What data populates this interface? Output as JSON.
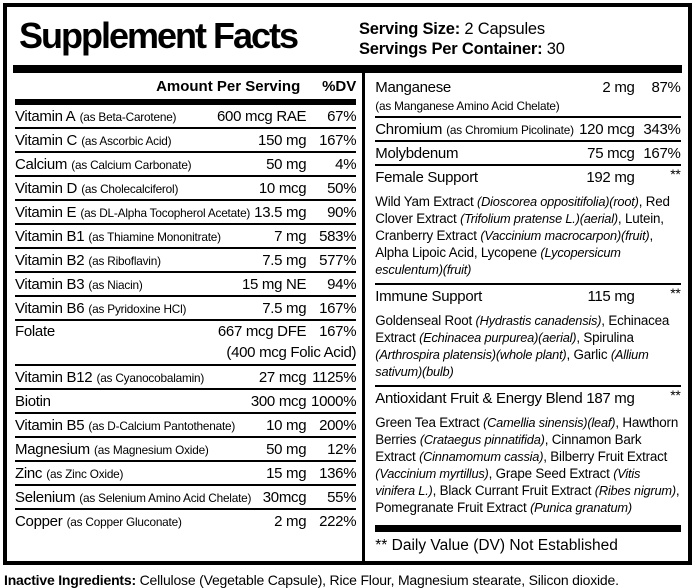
{
  "header": {
    "title": "Supplement Facts",
    "serving_size_label": "Serving Size:",
    "serving_size_value": " 2 Capsules",
    "servings_label": "Servings Per Container:",
    "servings_value": " 30"
  },
  "left": {
    "amount_header": "Amount Per Serving",
    "dv_header": "%DV",
    "rows": [
      {
        "name": "Vitamin A",
        "form": "(as Beta-Carotene)",
        "amount": "600 mcg RAE",
        "dv": "67%"
      },
      {
        "name": "Vitamin C",
        "form": "(as Ascorbic Acid)",
        "amount": "150 mg",
        "dv": "167%"
      },
      {
        "name": "Calcium",
        "form": "(as Calcium Carbonate)",
        "amount": "50 mg",
        "dv": "4%"
      },
      {
        "name": "Vitamin D",
        "form": "(as Cholecalciferol)",
        "amount": "10 mcg",
        "dv": "50%"
      },
      {
        "name": "Vitamin E",
        "form": "(as DL-Alpha Tocopherol Acetate)",
        "amount": "13.5 mg",
        "dv": "90%"
      },
      {
        "name": "Vitamin B1",
        "form": "(as Thiamine Mononitrate)",
        "amount": "7 mg",
        "dv": "583%"
      },
      {
        "name": "Vitamin B2",
        "form": "(as Riboflavin)",
        "amount": "7.5 mg",
        "dv": "577%"
      },
      {
        "name": "Vitamin B3",
        "form": "(as Niacin)",
        "amount": "15 mg NE",
        "dv": "94%"
      },
      {
        "name": "Vitamin B6",
        "form": "(as Pyridoxine HCl)",
        "amount": "7.5 mg",
        "dv": "167%"
      },
      {
        "name": "Folate",
        "form": "",
        "amount": "667 mcg DFE",
        "amount_line2": "(400 mcg Folic Acid)",
        "dv": "167%"
      },
      {
        "name": "Vitamin B12",
        "form": "(as Cyanocobalamin)",
        "amount": "27 mcg",
        "dv": "1125%"
      },
      {
        "name": "Biotin",
        "form": "",
        "amount": "300 mcg",
        "dv": "1000%"
      },
      {
        "name": "Vitamin B5",
        "form": "(as D-Calcium Pantothenate)",
        "amount": "10 mg",
        "dv": "200%"
      },
      {
        "name": "Magnesium",
        "form": "(as Magnesium Oxide)",
        "amount": "50 mg",
        "dv": "12%"
      },
      {
        "name": "Zinc",
        "form": "(as Zinc Oxide)",
        "amount": "15 mg",
        "dv": "136%"
      },
      {
        "name": "Selenium",
        "form": "(as Selenium Amino Acid Chelate)",
        "amount": "30mcg",
        "dv": "55%"
      },
      {
        "name": "Copper",
        "form": "(as Copper Gluconate)",
        "amount": "2 mg",
        "dv": "222%"
      }
    ]
  },
  "right": {
    "manganese": {
      "name": "Manganese",
      "form": "(as Manganese Amino Acid Chelate)",
      "amount": "2 mg",
      "dv": "87%"
    },
    "chromium": {
      "name": "Chromium",
      "form": "(as Chromium Picolinate)",
      "amount": "120 mcg",
      "dv": "343%"
    },
    "molybdenum": {
      "name": "Molybdenum",
      "form": "",
      "amount": "75 mcg",
      "dv": "167%"
    },
    "female_support": {
      "name": "Female Support",
      "amount": "192 mg",
      "dv": "**"
    },
    "female_blend": [
      {
        "t": "Wild Yam Extract ",
        "i": false
      },
      {
        "t": "(Dioscorea oppositifolia)(root)",
        "i": true
      },
      {
        "t": ", Red Clover Extract ",
        "i": false
      },
      {
        "t": "(Trifolium pratense L.)(aerial)",
        "i": true
      },
      {
        "t": ", Lutein, Cranberry Extract ",
        "i": false
      },
      {
        "t": "(Vaccinium macrocarpon)(fruit)",
        "i": true
      },
      {
        "t": ", Alpha Lipoic Acid, Lycopene ",
        "i": false
      },
      {
        "t": "(Lycopersicum esculentum)(fruit)",
        "i": true
      }
    ],
    "immune_support": {
      "name": "Immune Support",
      "amount": "115 mg",
      "dv": "**"
    },
    "immune_blend": [
      {
        "t": "Goldenseal Root ",
        "i": false
      },
      {
        "t": "(Hydrastis canadensis)",
        "i": true
      },
      {
        "t": ", Echinacea Extract ",
        "i": false
      },
      {
        "t": "(Echinacea purpurea)(aerial)",
        "i": true
      },
      {
        "t": ", Spirulina ",
        "i": false
      },
      {
        "t": "(Arthrospira platensis)(whole plant)",
        "i": true
      },
      {
        "t": ", Garlic ",
        "i": false
      },
      {
        "t": "(Allium sativum)(bulb)",
        "i": true
      }
    ],
    "antioxidant": {
      "name": "Antioxidant Fruit & Energy Blend 187 mg",
      "dv": "**"
    },
    "antioxidant_blend": [
      {
        "t": "Green Tea Extract ",
        "i": false
      },
      {
        "t": "(Camellia sinensis)(leaf)",
        "i": true
      },
      {
        "t": ", Hawthorn Berries ",
        "i": false
      },
      {
        "t": "(Crataegus pinnatifida)",
        "i": true
      },
      {
        "t": ", Cinnamon Bark Extract ",
        "i": false
      },
      {
        "t": "(Cinnamomum cassia)",
        "i": true
      },
      {
        "t": ", Bilberry Fruit Extract ",
        "i": false
      },
      {
        "t": "(Vaccinium myrtillus)",
        "i": true
      },
      {
        "t": ", Grape Seed Extract ",
        "i": false
      },
      {
        "t": "(Vitis vinifera L.)",
        "i": true
      },
      {
        "t": ", Black Currant Fruit Extract ",
        "i": false
      },
      {
        "t": "(Ribes nigrum)",
        "i": true
      },
      {
        "t": ", Pomegranate Fruit Extract ",
        "i": false
      },
      {
        "t": "(Punica granatum)",
        "i": true
      }
    ],
    "footnote": "** Daily Value (DV) Not Established"
  },
  "inactive": {
    "label": "Inactive Ingredients:",
    "text": " Cellulose (Vegetable Capsule), Rice Flour, Magnesium stearate, Silicon dioxide."
  }
}
